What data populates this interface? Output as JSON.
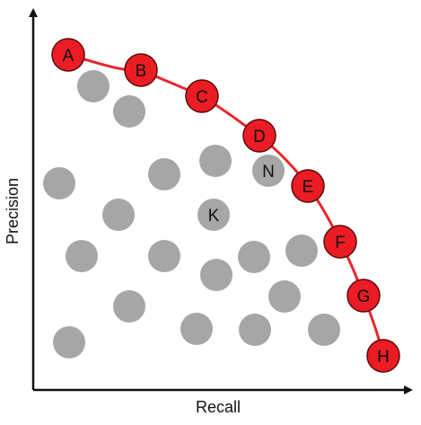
{
  "axes": {
    "x_label": "Recall",
    "y_label": "Precision"
  },
  "colors": {
    "frontier_fill": "#ec1c24",
    "frontier_stroke": "#5a0a0a",
    "frontier_line": "#e8262d",
    "gray_fill": "#a6a6a6",
    "axis": "#111111",
    "label_text": "#111111"
  },
  "frontier_points": [
    {
      "label": "A"
    },
    {
      "label": "B"
    },
    {
      "label": "C"
    },
    {
      "label": "D"
    },
    {
      "label": "E"
    },
    {
      "label": "F"
    },
    {
      "label": "G"
    },
    {
      "label": "H"
    }
  ],
  "labeled_gray_points": [
    {
      "label": "N"
    },
    {
      "label": "K"
    }
  ]
}
